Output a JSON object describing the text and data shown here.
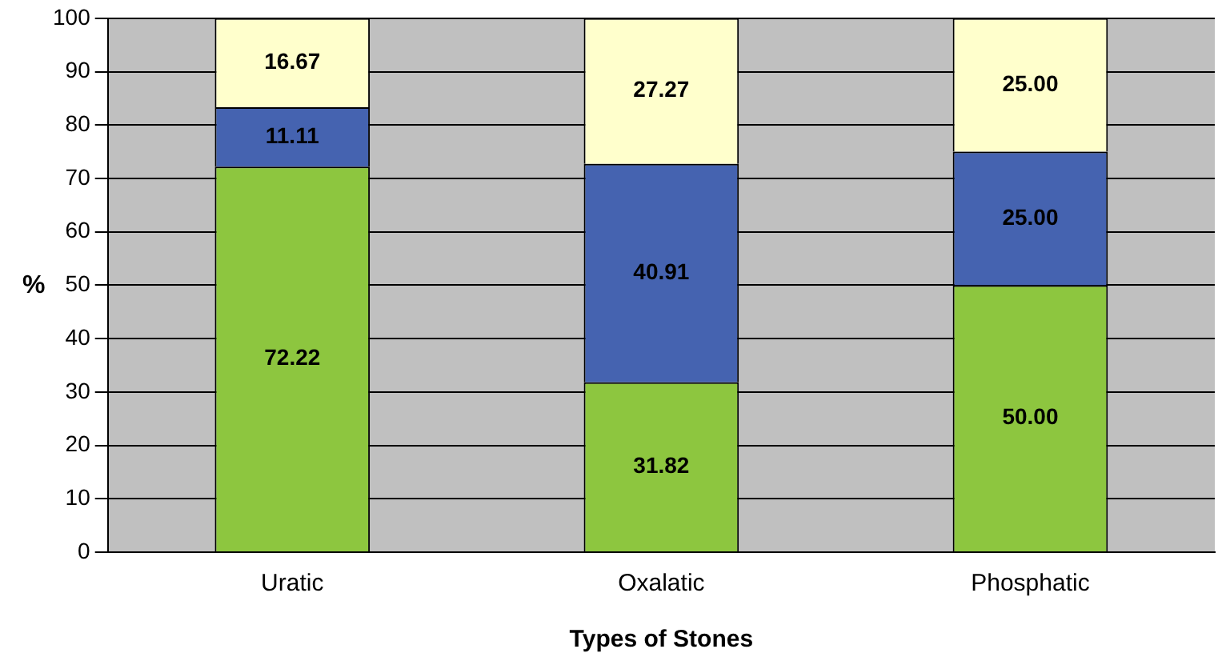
{
  "chart_data": {
    "type": "bar",
    "stacked": true,
    "xlabel": "Types of Stones",
    "ylabel": "%",
    "categories": [
      "Uratic",
      "Oxalatic",
      "Phosphatic"
    ],
    "series": [
      {
        "color": "#8dc63f",
        "values": [
          72.22,
          31.82,
          50
        ],
        "value_labels": [
          "72.22",
          "31.82",
          "50.00"
        ]
      },
      {
        "color": "#4563b0",
        "values": [
          11.11,
          40.91,
          25
        ],
        "value_labels": [
          "11.11",
          "40.91",
          "25.00"
        ]
      },
      {
        "color": "#ffffcc",
        "values": [
          16.67,
          27.27,
          25
        ],
        "value_labels": [
          "16.67",
          "27.27",
          "25.00"
        ]
      }
    ],
    "ylim": [
      0,
      100
    ],
    "yticks": [
      0,
      10,
      20,
      30,
      40,
      50,
      60,
      70,
      80,
      90,
      100
    ],
    "grid": "y",
    "legend": false
  }
}
